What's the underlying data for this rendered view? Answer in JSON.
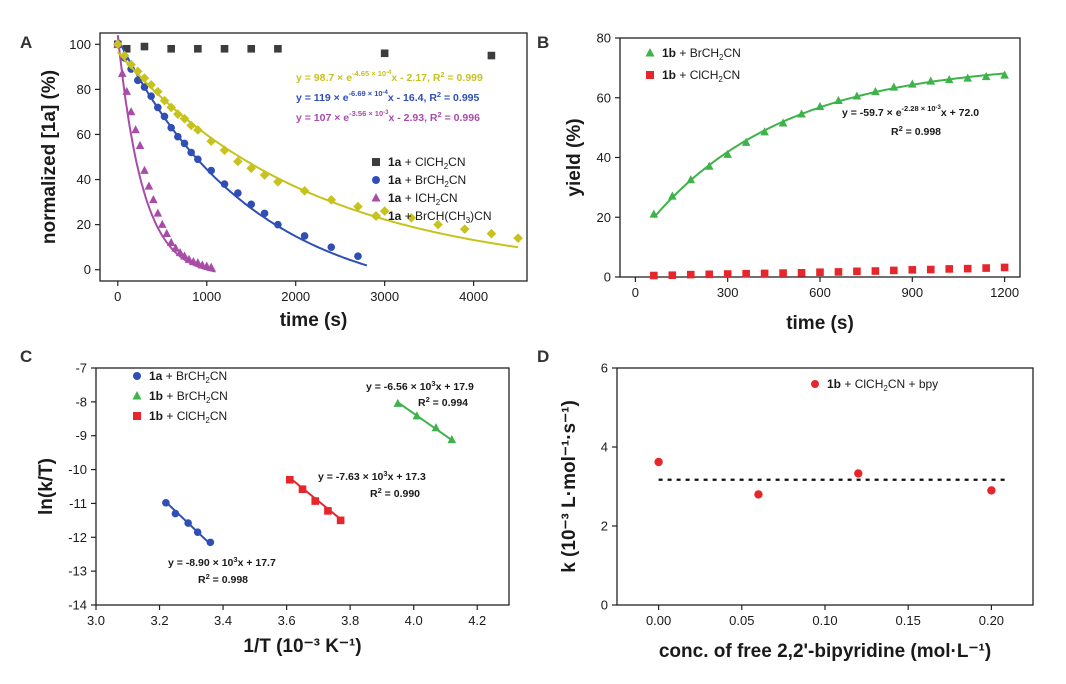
{
  "colors": {
    "black": "#3d3d3d",
    "blue": "#2f4fb5",
    "purple": "#a84ca8",
    "yellow": "#c7c21e",
    "green": "#3db34a",
    "red": "#e6262b"
  },
  "chart_data": [
    {
      "panel": "A",
      "type": "scatter",
      "xlabel": "time (s)",
      "ylabel": "normalized [1a] (%)",
      "xlim": [
        -200,
        4600
      ],
      "ylim": [
        -5,
        105
      ],
      "xticks": [
        0,
        1000,
        2000,
        3000,
        4000
      ],
      "yticks": [
        0,
        20,
        40,
        60,
        80,
        100
      ],
      "equations": [
        {
          "text": "y = 98.7 × e^(-4.65 × 10^-4 x) - 2.17,  R² = 0.999",
          "color": "yellow",
          "base": "y = 98.7 × e",
          "sup": "-4.65 × 10",
          "sup2": "-4",
          "after": "x - 2.17,  R",
          "r2": " = 0.999"
        },
        {
          "text": "y = 119 × e^(-6.69 × 10^-4 x) - 16.4,  R² = 0.995",
          "color": "blue",
          "base": "y = 119 × e",
          "sup": "-6.69 × 10",
          "sup2": "-4",
          "after": "x - 16.4,  R",
          "r2": " = 0.995"
        },
        {
          "text": "y = 107 × e^(-3.56 × 10^-3 x) - 2.93,  R² = 0.996",
          "color": "purple",
          "base": "y = 107 × e",
          "sup": "-3.56 × 10",
          "sup2": "-3",
          "after": "x - 2.93,  R",
          "r2": " = 0.996"
        }
      ],
      "series": [
        {
          "name": "1a + ClCH2CN",
          "bold": "1a",
          "rest": " + ClCH",
          "sub": "2",
          "tail": "CN",
          "marker": "square",
          "color": "black",
          "x": [
            0,
            100,
            300,
            600,
            900,
            1200,
            1500,
            1800,
            3000,
            4200
          ],
          "y": [
            100,
            98,
            99,
            98,
            98,
            98,
            98,
            98,
            96,
            95
          ],
          "fit": null
        },
        {
          "name": "1a + BrCH2CN",
          "bold": "1a",
          "rest": " + BrCH",
          "sub": "2",
          "tail": "CN",
          "marker": "circle",
          "color": "blue",
          "x": [
            0,
            75,
            150,
            225,
            300,
            375,
            450,
            525,
            600,
            675,
            750,
            825,
            900,
            1050,
            1200,
            1350,
            1500,
            1650,
            1800,
            2100,
            2400,
            2700
          ],
          "y": [
            100,
            94,
            89,
            84,
            81,
            77,
            72,
            68,
            63,
            59,
            56,
            52,
            49,
            44,
            38,
            34,
            29,
            25,
            20,
            15,
            10,
            6
          ],
          "fit": {
            "a": 119,
            "k": 0.000669,
            "c": -16.4,
            "xmax": 2800
          }
        },
        {
          "name": "1a + ICH2CN",
          "bold": "1a",
          "rest": " + ICH",
          "sub": "2",
          "tail": "CN",
          "marker": "triangle",
          "color": "purple",
          "x": [
            0,
            50,
            100,
            150,
            200,
            250,
            300,
            350,
            400,
            450,
            500,
            550,
            600,
            650,
            700,
            750,
            800,
            850,
            900,
            950,
            1000,
            1050
          ],
          "y": [
            100,
            87,
            79,
            70,
            62,
            55,
            44,
            37,
            31,
            25,
            20,
            16,
            12,
            9.5,
            7.5,
            6,
            4.5,
            3.5,
            3,
            2,
            1.5,
            1
          ],
          "fit": {
            "a": 107,
            "k": 0.00356,
            "c": -2.93,
            "xmax": 1100
          }
        },
        {
          "name": "1a + BrCH(CH3)CN",
          "bold": "1a",
          "rest": " + BrCH(CH",
          "sub": "3",
          "tail": ")CN",
          "marker": "diamond",
          "color": "yellow",
          "x": [
            0,
            75,
            150,
            225,
            300,
            375,
            450,
            525,
            600,
            675,
            750,
            825,
            900,
            1050,
            1200,
            1350,
            1500,
            1650,
            1800,
            2100,
            2400,
            2700,
            3000,
            3300,
            3600,
            3900,
            4200,
            4500
          ],
          "y": [
            100,
            95,
            91,
            88,
            85,
            82,
            79,
            75,
            72,
            69,
            67,
            64,
            62,
            57,
            53,
            48,
            45,
            42,
            39,
            35,
            31,
            28,
            26,
            23,
            20,
            18,
            16,
            14
          ],
          "fit": {
            "a": 98.7,
            "k": 0.000465,
            "c": -2.17,
            "xmax": 4500
          }
        }
      ]
    },
    {
      "panel": "B",
      "type": "scatter",
      "xlabel": "time (s)",
      "ylabel": "yield (%)",
      "xlim": [
        -50,
        1250
      ],
      "ylim": [
        0,
        80
      ],
      "xticks": [
        0,
        300,
        600,
        900,
        1200
      ],
      "yticks": [
        0,
        20,
        40,
        60,
        80
      ],
      "equations": [
        {
          "text": "y = -59.7 × e^(-2.28 × 10^-3 x) + 72.0",
          "base": "y = -59.7 × e",
          "sup": "-2.28 × 10",
          "sup2": "-3",
          "after": "x + 72.0"
        },
        {
          "text": "R² = 0.998",
          "base": "R",
          "r2": " = 0.998"
        }
      ],
      "series": [
        {
          "name": "1b + BrCH2CN",
          "bold": "1b",
          "rest": " + BrCH",
          "sub": "2",
          "tail": "CN",
          "marker": "triangle",
          "color": "green",
          "x": [
            60,
            120,
            180,
            240,
            300,
            360,
            420,
            480,
            540,
            600,
            660,
            720,
            780,
            840,
            900,
            960,
            1020,
            1080,
            1140,
            1200
          ],
          "y": [
            21,
            27,
            32.5,
            37,
            41,
            45,
            48.5,
            51.5,
            54.5,
            57,
            59,
            60.5,
            62,
            63.5,
            64.5,
            65.5,
            66,
            66.5,
            67,
            67.5
          ],
          "fit": {
            "a": -59.7,
            "k": 0.00228,
            "c": 72.0,
            "xmin": 60,
            "xmax": 1200
          }
        },
        {
          "name": "1b + ClCH2CN",
          "bold": "1b",
          "rest": " + ClCH",
          "sub": "2",
          "tail": "CN",
          "marker": "square",
          "color": "red",
          "x": [
            60,
            120,
            180,
            240,
            300,
            360,
            420,
            480,
            540,
            600,
            660,
            720,
            780,
            840,
            900,
            960,
            1020,
            1080,
            1140,
            1200
          ],
          "y": [
            0.5,
            0.6,
            0.8,
            0.9,
            1,
            1.1,
            1.2,
            1.3,
            1.4,
            1.6,
            1.7,
            1.9,
            2,
            2.2,
            2.4,
            2.5,
            2.7,
            2.8,
            3,
            3.2
          ],
          "fit": null
        }
      ]
    },
    {
      "panel": "C",
      "type": "scatter",
      "xlabel": "1/T (10⁻³ K⁻¹)",
      "ylabel": "ln(k/T)",
      "xlim": [
        3.0,
        4.3
      ],
      "ylim": [
        -14,
        -7
      ],
      "xticks": [
        3.0,
        3.2,
        3.4,
        3.6,
        3.8,
        4.0,
        4.2
      ],
      "yticks": [
        -14,
        -13,
        -12,
        -11,
        -10,
        -9,
        -8,
        -7
      ],
      "series": [
        {
          "name": "1a + BrCH2CN",
          "bold": "1a",
          "rest": " + BrCH",
          "sub": "2",
          "tail": "CN",
          "marker": "circle",
          "color": "blue",
          "x": [
            3.22,
            3.25,
            3.29,
            3.32,
            3.36
          ],
          "y": [
            -10.98,
            -11.3,
            -11.58,
            -11.85,
            -12.15
          ],
          "fit": {
            "m": -8.9,
            "b": 17.7,
            "x0": 3.22,
            "x1": 3.36
          },
          "eq1": "y = -8.90 × 10",
          "eq1sup": "3",
          "eq1tail": "x + 17.7",
          "eq2": " = 0.998"
        },
        {
          "name": "1b + BrCH2CN",
          "bold": "1b",
          "rest": " + BrCH",
          "sub": "2",
          "tail": "CN",
          "marker": "triangle",
          "color": "green",
          "x": [
            3.95,
            4.01,
            4.07,
            4.12
          ],
          "y": [
            -8.05,
            -8.42,
            -8.77,
            -9.12
          ],
          "fit": {
            "m": -6.56,
            "b": 17.9,
            "x0": 3.95,
            "x1": 4.12
          },
          "eq1": "y = -6.56 × 10",
          "eq1sup": "3",
          "eq1tail": "x + 17.9",
          "eq2": " = 0.994"
        },
        {
          "name": "1b + ClCH2CN",
          "bold": "1b",
          "rest": " + ClCH",
          "sub": "2",
          "tail": "CN",
          "marker": "square",
          "color": "red",
          "x": [
            3.61,
            3.65,
            3.69,
            3.73,
            3.77
          ],
          "y": [
            -10.3,
            -10.58,
            -10.93,
            -11.22,
            -11.5
          ],
          "fit": {
            "m": -7.63,
            "b": 17.3,
            "x0": 3.61,
            "x1": 3.77
          },
          "eq1": "y = -7.63 × 10",
          "eq1sup": "3",
          "eq1tail": "x + 17.3",
          "eq2": " = 0.990"
        }
      ]
    },
    {
      "panel": "D",
      "type": "scatter",
      "xlabel": "conc. of free 2,2'-bipyridine (mol·L⁻¹)",
      "ylabel": "k (10⁻³ L·mol⁻¹·s⁻¹)",
      "xlim": [
        -0.025,
        0.225
      ],
      "ylim": [
        0,
        6
      ],
      "xticks": [
        0.0,
        0.05,
        0.1,
        0.15,
        0.2
      ],
      "yticks": [
        0,
        2,
        4,
        6
      ],
      "mean_line": 3.17,
      "series": [
        {
          "name": "1b + ClCH2CN + bpy",
          "bold": "1b",
          "rest": " + ClCH",
          "sub": "2",
          "tail": "CN + bpy",
          "marker": "circle",
          "color": "red",
          "x": [
            0.0,
            0.06,
            0.12,
            0.2
          ],
          "y": [
            3.62,
            2.8,
            3.33,
            2.9
          ]
        }
      ]
    }
  ]
}
